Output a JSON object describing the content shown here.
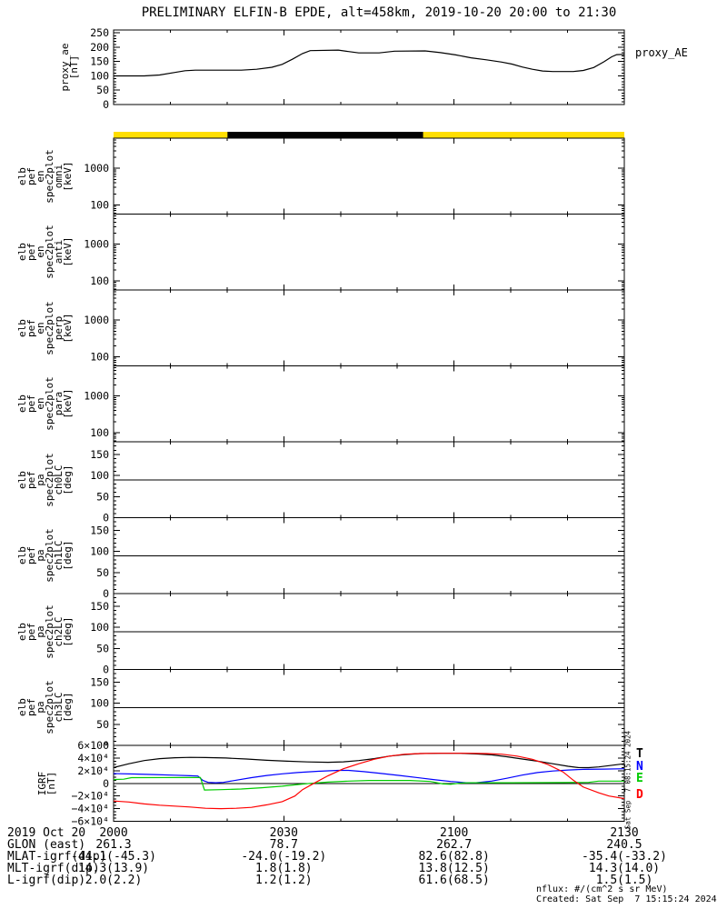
{
  "title": "PRELIMINARY ELFIN-B EPDE, alt=458km, 2019-10-20 20:00 to 21:30",
  "right_label": "proxy_AE",
  "notes": {
    "nflux": "nflux: #/(cm^2 s sr MeV)",
    "created": "Created: Sat Sep  7 15:15:24 2024",
    "created_vertical": "Sat Sep  7 08:15:24 2024"
  },
  "legend": [
    {
      "label": "T",
      "color": "#000000"
    },
    {
      "label": "N",
      "color": "#0000ff"
    },
    {
      "label": "E",
      "color": "#00cc00"
    },
    {
      "label": "D",
      "color": "#ff0000"
    }
  ],
  "colors": {
    "bar_yellow": "#ffde00",
    "bar_black": "#000000",
    "axis": "#000000"
  },
  "footer": {
    "rows": [
      {
        "label": "2019 Oct 20",
        "values": [
          "2000",
          "2030",
          "2100",
          "2130"
        ]
      },
      {
        "label": "GLON (east)",
        "values": [
          "261.3",
          "78.7",
          "262.7",
          "240.5"
        ]
      },
      {
        "label": "MLAT-igrf(dip)",
        "values": [
          "-44.1(-45.3)",
          "-24.0(-19.2)",
          "82.6(82.8)",
          "-35.4(-33.2)"
        ]
      },
      {
        "label": "MLT-igrf(dip)",
        "values": [
          "14.3(13.9)",
          "1.8(1.8)",
          "13.8(12.5)",
          "14.3(14.0)"
        ]
      },
      {
        "label": "L-igrf(dip)",
        "values": [
          "2.0(2.2)",
          "1.2(1.2)",
          "61.6(68.5)",
          "1.5(1.5)"
        ]
      }
    ]
  },
  "xaxis": {
    "tick_labels": [
      "2000",
      "2030",
      "2100",
      "2130"
    ],
    "minor_divisions": 9
  },
  "chart_data": [
    {
      "id": "proxy_ae",
      "type": "line",
      "label": "proxy_ae\n[nT]",
      "scale": "linear",
      "yrange": [
        0,
        260
      ],
      "yticks": [
        0,
        50,
        100,
        150,
        200,
        250
      ],
      "ytick_labels": [
        "0",
        "50",
        "100",
        "150",
        "200",
        "250"
      ],
      "yminor": 10,
      "series": [
        {
          "name": "proxy_AE",
          "color": "#000000",
          "points": [
            [
              0,
              100
            ],
            [
              0.06,
              100
            ],
            [
              0.09,
              103
            ],
            [
              0.12,
              112
            ],
            [
              0.14,
              118
            ],
            [
              0.16,
              120
            ],
            [
              0.25,
              120
            ],
            [
              0.28,
              123
            ],
            [
              0.31,
              130
            ],
            [
              0.33,
              140
            ],
            [
              0.35,
              158
            ],
            [
              0.37,
              178
            ],
            [
              0.385,
              188
            ],
            [
              0.44,
              190
            ],
            [
              0.46,
              185
            ],
            [
              0.48,
              180
            ],
            [
              0.52,
              180
            ],
            [
              0.55,
              186
            ],
            [
              0.61,
              187
            ],
            [
              0.64,
              181
            ],
            [
              0.67,
              173
            ],
            [
              0.7,
              163
            ],
            [
              0.73,
              156
            ],
            [
              0.76,
              148
            ],
            [
              0.78,
              141
            ],
            [
              0.8,
              131
            ],
            [
              0.82,
              123
            ],
            [
              0.84,
              117
            ],
            [
              0.86,
              115
            ],
            [
              0.9,
              115
            ],
            [
              0.92,
              119
            ],
            [
              0.94,
              129
            ],
            [
              0.96,
              149
            ],
            [
              0.975,
              166
            ],
            [
              0.985,
              174
            ],
            [
              1,
              175
            ]
          ]
        }
      ]
    },
    {
      "id": "epd_bar",
      "type": "bar-strip",
      "segments": [
        {
          "x0": 0,
          "x1": 1,
          "color": "#ffde00"
        },
        {
          "x0": 0.223,
          "x1": 0.606,
          "color": "#000000"
        }
      ]
    },
    {
      "id": "omni",
      "type": "spectrogram-empty",
      "label": "elb\npef\nen\nspec2plot\nomni\n[keV]",
      "scale": "log",
      "yrange": [
        56,
        6700
      ],
      "yticks": [
        100,
        1000
      ],
      "ytick_labels": [
        "100",
        "1000"
      ],
      "yminor_log": [
        60,
        70,
        80,
        90,
        200,
        300,
        400,
        500,
        600,
        700,
        800,
        900,
        2000,
        3000,
        4000,
        5000,
        6000
      ]
    },
    {
      "id": "anti",
      "type": "spectrogram-empty",
      "label": "elb\npef\nen\nspec2plot\nanti\n[keV]",
      "scale": "log",
      "yrange": [
        56,
        6700
      ],
      "yticks": [
        100,
        1000
      ],
      "ytick_labels": [
        "100",
        "1000"
      ],
      "yminor_log": [
        60,
        70,
        80,
        90,
        200,
        300,
        400,
        500,
        600,
        700,
        800,
        900,
        2000,
        3000,
        4000,
        5000,
        6000
      ]
    },
    {
      "id": "perp",
      "type": "spectrogram-empty",
      "label": "elb\npef\nen\nspec2plot\nperp\n[keV]",
      "scale": "log",
      "yrange": [
        56,
        6700
      ],
      "yticks": [
        100,
        1000
      ],
      "ytick_labels": [
        "100",
        "1000"
      ],
      "yminor_log": [
        60,
        70,
        80,
        90,
        200,
        300,
        400,
        500,
        600,
        700,
        800,
        900,
        2000,
        3000,
        4000,
        5000,
        6000
      ]
    },
    {
      "id": "para",
      "type": "spectrogram-empty",
      "label": "elb\npef\nen\nspec2plot\npara\n[keV]",
      "scale": "log",
      "yrange": [
        56,
        6700
      ],
      "yticks": [
        100,
        1000
      ],
      "ytick_labels": [
        "100",
        "1000"
      ],
      "yminor_log": [
        60,
        70,
        80,
        90,
        200,
        300,
        400,
        500,
        600,
        700,
        800,
        900,
        2000,
        3000,
        4000,
        5000,
        6000
      ]
    },
    {
      "id": "ch0lc",
      "type": "spectrogram-empty",
      "label": "elb\npef\npa\nspec2plot\nch0LC\n[deg]",
      "scale": "linear",
      "yrange": [
        0,
        180
      ],
      "yticks": [
        0,
        50,
        100,
        150
      ],
      "ytick_labels": [
        "0",
        "50",
        "100",
        "150"
      ],
      "yminor": 10,
      "hline": 90
    },
    {
      "id": "ch1lc",
      "type": "spectrogram-empty",
      "label": "elb\npef\npa\nspec2plot\nch1LC\n[deg]",
      "scale": "linear",
      "yrange": [
        0,
        180
      ],
      "yticks": [
        0,
        50,
        100,
        150
      ],
      "ytick_labels": [
        "0",
        "50",
        "100",
        "150"
      ],
      "yminor": 10,
      "hline": 90
    },
    {
      "id": "ch2lc",
      "type": "spectrogram-empty",
      "label": "elb\npef\npa\nspec2plot\nch2LC\n[deg]",
      "scale": "linear",
      "yrange": [
        0,
        180
      ],
      "yticks": [
        0,
        50,
        100,
        150
      ],
      "ytick_labels": [
        "0",
        "50",
        "100",
        "150"
      ],
      "yminor": 10,
      "hline": 90
    },
    {
      "id": "ch3lc",
      "type": "spectrogram-empty",
      "label": "elb\npef\npa\nspec2plot\nch3LC\n[deg]",
      "scale": "linear",
      "yrange": [
        0,
        180
      ],
      "yticks": [
        0,
        50,
        100,
        150
      ],
      "ytick_labels": [
        "0",
        "50",
        "100",
        "150"
      ],
      "yminor": 10,
      "hline": 90
    },
    {
      "id": "igrf",
      "type": "line",
      "label": "IGRF\n[nT]",
      "scale": "linear",
      "yrange": [
        -60000,
        60000
      ],
      "yticks": [
        -60000,
        -40000,
        -20000,
        0,
        20000,
        40000,
        60000
      ],
      "ytick_labels": [
        "−6×10⁴",
        "−4×10⁴",
        "−2×10⁴",
        "0",
        "2×10⁴",
        "4×10⁴",
        "6×10⁴"
      ],
      "yminor": 5000,
      "hline": 0,
      "series": [
        {
          "name": "T",
          "color": "#000000",
          "points": [
            [
              0,
              25000
            ],
            [
              0.03,
              31000
            ],
            [
              0.06,
              36000
            ],
            [
              0.09,
              39000
            ],
            [
              0.12,
              40500
            ],
            [
              0.15,
              41000
            ],
            [
              0.18,
              40800
            ],
            [
              0.22,
              40000
            ],
            [
              0.26,
              38500
            ],
            [
              0.3,
              36500
            ],
            [
              0.34,
              35000
            ],
            [
              0.38,
              33800
            ],
            [
              0.42,
              33200
            ],
            [
              0.45,
              34000
            ],
            [
              0.48,
              36000
            ],
            [
              0.51,
              39000
            ],
            [
              0.54,
              43000
            ],
            [
              0.57,
              45500
            ],
            [
              0.6,
              47000
            ],
            [
              0.64,
              47500
            ],
            [
              0.68,
              47500
            ],
            [
              0.71,
              46500
            ],
            [
              0.74,
              45000
            ],
            [
              0.77,
              42000
            ],
            [
              0.8,
              38500
            ],
            [
              0.83,
              35000
            ],
            [
              0.86,
              31000
            ],
            [
              0.89,
              27000
            ],
            [
              0.91,
              25000
            ],
            [
              0.93,
              24800
            ],
            [
              0.95,
              26000
            ],
            [
              0.97,
              28000
            ],
            [
              1,
              31000
            ]
          ]
        },
        {
          "name": "N",
          "color": "#0000ff",
          "points": [
            [
              0,
              15500
            ],
            [
              0.04,
              14800
            ],
            [
              0.08,
              13800
            ],
            [
              0.12,
              12800
            ],
            [
              0.15,
              12000
            ],
            [
              0.165,
              11500
            ],
            [
              0.175,
              4500
            ],
            [
              0.185,
              1500
            ],
            [
              0.2,
              1000
            ],
            [
              0.215,
              1500
            ],
            [
              0.24,
              5000
            ],
            [
              0.27,
              9000
            ],
            [
              0.3,
              12500
            ],
            [
              0.33,
              15000
            ],
            [
              0.36,
              17000
            ],
            [
              0.4,
              19000
            ],
            [
              0.44,
              20500
            ],
            [
              0.46,
              20500
            ],
            [
              0.49,
              18500
            ],
            [
              0.52,
              16000
            ],
            [
              0.56,
              12500
            ],
            [
              0.6,
              8500
            ],
            [
              0.63,
              5500
            ],
            [
              0.66,
              3000
            ],
            [
              0.69,
              1000
            ],
            [
              0.71,
              1000
            ],
            [
              0.74,
              3500
            ],
            [
              0.77,
              8000
            ],
            [
              0.8,
              13000
            ],
            [
              0.83,
              17000
            ],
            [
              0.86,
              19500
            ],
            [
              0.89,
              21000
            ],
            [
              0.92,
              22000
            ],
            [
              0.96,
              22500
            ],
            [
              1,
              23000
            ]
          ]
        },
        {
          "name": "E",
          "color": "#00cc00",
          "points": [
            [
              0,
              6000
            ],
            [
              0.02,
              6500
            ],
            [
              0.035,
              9000
            ],
            [
              0.17,
              9300
            ],
            [
              0.178,
              -10500
            ],
            [
              0.21,
              -10000
            ],
            [
              0.25,
              -9000
            ],
            [
              0.29,
              -7000
            ],
            [
              0.33,
              -4500
            ],
            [
              0.36,
              -2000
            ],
            [
              0.385,
              0
            ],
            [
              0.42,
              2000
            ],
            [
              0.46,
              3500
            ],
            [
              0.5,
              4500
            ],
            [
              0.58,
              4500
            ],
            [
              0.62,
              3000
            ],
            [
              0.645,
              -1000
            ],
            [
              0.66,
              -1500
            ],
            [
              0.68,
              500
            ],
            [
              0.7,
              1000
            ],
            [
              0.78,
              1000
            ],
            [
              0.88,
              1200
            ],
            [
              0.93,
              1500
            ],
            [
              0.95,
              3500
            ],
            [
              1,
              3500
            ]
          ]
        },
        {
          "name": "D",
          "color": "#ff0000",
          "points": [
            [
              0,
              -28000
            ],
            [
              0.03,
              -29500
            ],
            [
              0.06,
              -32500
            ],
            [
              0.09,
              -34500
            ],
            [
              0.12,
              -36000
            ],
            [
              0.15,
              -37500
            ],
            [
              0.18,
              -39500
            ],
            [
              0.21,
              -40000
            ],
            [
              0.24,
              -39500
            ],
            [
              0.27,
              -38000
            ],
            [
              0.3,
              -34000
            ],
            [
              0.33,
              -29000
            ],
            [
              0.355,
              -20000
            ],
            [
              0.37,
              -10000
            ],
            [
              0.392,
              0
            ],
            [
              0.42,
              12000
            ],
            [
              0.45,
              23000
            ],
            [
              0.48,
              31000
            ],
            [
              0.51,
              38000
            ],
            [
              0.54,
              43000
            ],
            [
              0.57,
              46000
            ],
            [
              0.6,
              47000
            ],
            [
              0.63,
              47500
            ],
            [
              0.7,
              47500
            ],
            [
              0.73,
              47000
            ],
            [
              0.76,
              46000
            ],
            [
              0.79,
              43000
            ],
            [
              0.82,
              38000
            ],
            [
              0.85,
              30000
            ],
            [
              0.88,
              18000
            ],
            [
              0.9,
              5000
            ],
            [
              0.92,
              -6000
            ],
            [
              0.95,
              -15000
            ],
            [
              0.97,
              -20000
            ],
            [
              1,
              -24000
            ]
          ]
        }
      ]
    }
  ]
}
